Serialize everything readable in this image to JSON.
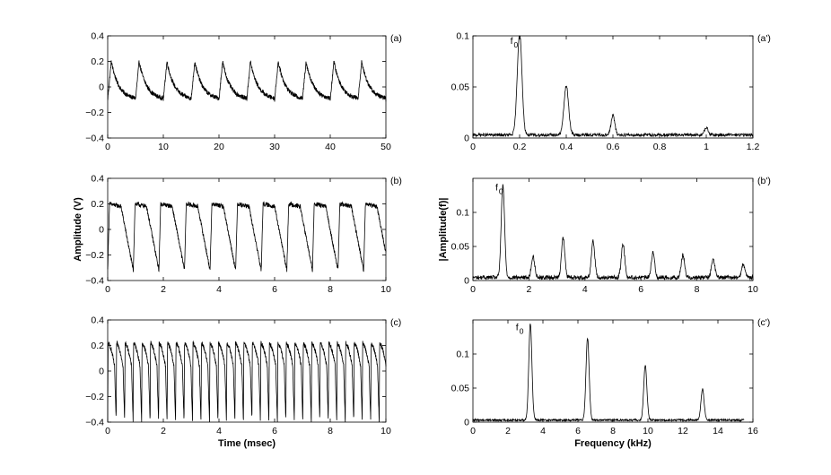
{
  "colors": {
    "line": "#000000",
    "background": "#ffffff"
  },
  "chart_data": [
    {
      "id": "a",
      "type": "line",
      "panel_label": "(a)",
      "xlim": [
        0,
        50
      ],
      "ylim": [
        -0.4,
        0.4
      ],
      "xticks": [
        "0",
        "10",
        "20",
        "30",
        "40",
        "50"
      ],
      "xtick_values": [
        0,
        10,
        20,
        30,
        40,
        50
      ],
      "yticks": [
        "−0.4",
        "−0.2",
        "0",
        "0.2",
        "0.4"
      ],
      "ytick_values": [
        -0.4,
        -0.2,
        0,
        0.2,
        0.4
      ],
      "xlabel": "",
      "ylabel": "",
      "waveform": "sawtooth-decay",
      "period_ms": 5.0,
      "peak": 0.2,
      "trough": -0.1
    },
    {
      "id": "b",
      "type": "line",
      "panel_label": "(b)",
      "xlim": [
        0,
        10
      ],
      "ylim": [
        -0.4,
        0.4
      ],
      "xticks": [
        "0",
        "2",
        "4",
        "6",
        "8",
        "10"
      ],
      "xtick_values": [
        0,
        2,
        4,
        6,
        8,
        10
      ],
      "yticks": [
        "−0.4",
        "−0.2",
        "0",
        "0.2",
        "0.4"
      ],
      "ytick_values": [
        -0.4,
        -0.2,
        0,
        0.2,
        0.4
      ],
      "xlabel": "",
      "ylabel": "Amplitude (V)",
      "waveform": "triangle",
      "period_ms": 0.92,
      "peak": 0.2,
      "trough": -0.32
    },
    {
      "id": "c",
      "type": "line",
      "panel_label": "(c)",
      "xlim": [
        0,
        10
      ],
      "ylim": [
        -0.4,
        0.4
      ],
      "xticks": [
        "0",
        "2",
        "4",
        "6",
        "8",
        "10"
      ],
      "xtick_values": [
        0,
        2,
        4,
        6,
        8,
        10
      ],
      "yticks": [
        "−0.4",
        "−0.2",
        "0",
        "0.2",
        "0.4"
      ],
      "ytick_values": [
        -0.4,
        -0.2,
        0,
        0.2,
        0.4
      ],
      "xlabel": "Time (msec)",
      "ylabel": "",
      "waveform": "spike-decay",
      "period_ms": 0.305,
      "peak": 0.22,
      "trough": -0.4
    },
    {
      "id": "a2",
      "type": "line",
      "panel_label": "(a')",
      "xlim": [
        0,
        1.2
      ],
      "ylim": [
        0,
        0.1
      ],
      "xticks": [
        "0",
        "0.2",
        "0.4",
        "0.6",
        "0.8",
        "1",
        "1.2"
      ],
      "xtick_values": [
        0,
        0.2,
        0.4,
        0.6,
        0.8,
        1,
        1.2
      ],
      "yticks": [
        "0",
        "0.05",
        "0.1"
      ],
      "ytick_values": [
        0,
        0.05,
        0.1
      ],
      "xlabel": "",
      "ylabel": "",
      "annotation": {
        "text": "f",
        "sub": "0",
        "x": 0.16,
        "y": 0.092
      },
      "peaks": [
        {
          "x": 0.2,
          "y": 0.1,
          "w": 0.01
        },
        {
          "x": 0.4,
          "y": 0.048,
          "w": 0.01
        },
        {
          "x": 0.6,
          "y": 0.019,
          "w": 0.008
        },
        {
          "x": 1.0,
          "y": 0.007,
          "w": 0.008
        }
      ],
      "noise_level": 0.003,
      "freq_max": 1.2
    },
    {
      "id": "b2",
      "type": "line",
      "panel_label": "(b')",
      "xlim": [
        0,
        10
      ],
      "ylim": [
        0,
        0.15
      ],
      "xticks": [
        "0",
        "2",
        "4",
        "6",
        "8",
        "10"
      ],
      "xtick_values": [
        0,
        2,
        4,
        6,
        8,
        10
      ],
      "yticks": [
        "0",
        "0.05",
        "0.1"
      ],
      "ytick_values": [
        0,
        0.05,
        0.1
      ],
      "xlabel": "",
      "ylabel": "|Amplitude(f)|",
      "annotation": {
        "text": "f",
        "sub": "0",
        "x": 0.8,
        "y": 0.132
      },
      "peaks": [
        {
          "x": 1.07,
          "y": 0.135,
          "w": 0.06
        },
        {
          "x": 2.15,
          "y": 0.03,
          "w": 0.06
        },
        {
          "x": 3.22,
          "y": 0.058,
          "w": 0.06
        },
        {
          "x": 4.29,
          "y": 0.054,
          "w": 0.06
        },
        {
          "x": 5.36,
          "y": 0.05,
          "w": 0.06
        },
        {
          "x": 6.43,
          "y": 0.036,
          "w": 0.06
        },
        {
          "x": 7.5,
          "y": 0.033,
          "w": 0.06
        },
        {
          "x": 8.58,
          "y": 0.027,
          "w": 0.06
        },
        {
          "x": 9.65,
          "y": 0.019,
          "w": 0.06
        }
      ],
      "noise_level": 0.006,
      "freq_max": 10
    },
    {
      "id": "c2",
      "type": "line",
      "panel_label": "(c')",
      "xlim": [
        0,
        16
      ],
      "ylim": [
        0,
        0.15
      ],
      "xticks": [
        "0",
        "2",
        "4",
        "6",
        "8",
        "10",
        "12",
        "14",
        "16"
      ],
      "xtick_values": [
        0,
        2,
        4,
        6,
        8,
        10,
        12,
        14,
        16
      ],
      "yticks": [
        "0",
        "0.05",
        "0.1"
      ],
      "ytick_values": [
        0,
        0.05,
        0.1
      ],
      "xlabel": "Frequency (kHz)",
      "ylabel": "",
      "annotation": {
        "text": "f",
        "sub": "0",
        "x": 2.45,
        "y": 0.135
      },
      "peaks": [
        {
          "x": 3.28,
          "y": 0.142,
          "w": 0.09
        },
        {
          "x": 6.55,
          "y": 0.121,
          "w": 0.09
        },
        {
          "x": 9.85,
          "y": 0.08,
          "w": 0.09
        },
        {
          "x": 13.12,
          "y": 0.045,
          "w": 0.09
        }
      ],
      "noise_level": 0.003,
      "freq_max": 15.5
    }
  ]
}
